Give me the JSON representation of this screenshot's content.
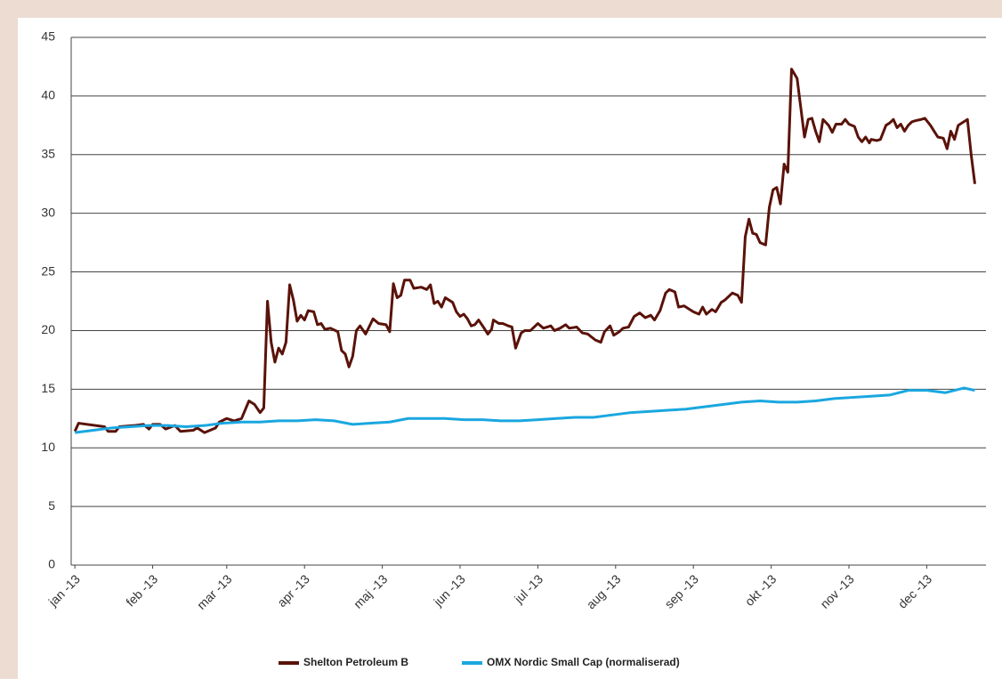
{
  "chart_data": {
    "type": "line",
    "xlim": [
      -1,
      246
    ],
    "xticks": [
      {
        "value": 0,
        "label": "jan -13"
      },
      {
        "value": 21,
        "label": "feb -13"
      },
      {
        "value": 41,
        "label": "mar -13"
      },
      {
        "value": 62,
        "label": "apr -13"
      },
      {
        "value": 83,
        "label": "maj -13"
      },
      {
        "value": 104,
        "label": "jun -13"
      },
      {
        "value": 125,
        "label": "jul -13"
      },
      {
        "value": 146,
        "label": "aug -13"
      },
      {
        "value": 167,
        "label": "sep -13"
      },
      {
        "value": 188,
        "label": "okt -13"
      },
      {
        "value": 209,
        "label": "nov -13"
      },
      {
        "value": 230,
        "label": "dec -13"
      }
    ],
    "ylim": [
      0,
      45
    ],
    "yticks": [
      0,
      5,
      10,
      15,
      20,
      25,
      30,
      35,
      40,
      45
    ],
    "grid": true,
    "legend": "bottom",
    "series": [
      {
        "name": "Shelton Petroleum B",
        "color": "#5a1209",
        "x": [
          0,
          1,
          8,
          9,
          11,
          12,
          16,
          18.5,
          20,
          21,
          23,
          24.5,
          27,
          28.5,
          32,
          33,
          35,
          38,
          39,
          41,
          43,
          45,
          47,
          48.5,
          50,
          51,
          52,
          53,
          54,
          55,
          56,
          57,
          58,
          59,
          60,
          61,
          62,
          63,
          64.5,
          65.5,
          66.5,
          67.5,
          69,
          71,
          72,
          73,
          74,
          75,
          76,
          77,
          78.5,
          80.5,
          82,
          84,
          85,
          86,
          87,
          88,
          89,
          90.5,
          91.5,
          93.5,
          95,
          96,
          97,
          98,
          99,
          100,
          101,
          102,
          103,
          104,
          105,
          106,
          107,
          108,
          109,
          110.5,
          111.5,
          112.5,
          113,
          114.5,
          115.5,
          117,
          118,
          119,
          120.5,
          121.5,
          123,
          125,
          126.5,
          128.5,
          129.5,
          131,
          132.5,
          133.5,
          135.5,
          137,
          138.5,
          140.5,
          142,
          143,
          144.5,
          145.5,
          147,
          148,
          149.5,
          151,
          152.5,
          154,
          155.5,
          156.5,
          158,
          159.5,
          160.5,
          162,
          163,
          164.5,
          166,
          167,
          168.5,
          169.5,
          170.5,
          172,
          173,
          174.5,
          175.5,
          177.5,
          179,
          180,
          181,
          182,
          183,
          184,
          185,
          186.5,
          187.5,
          188.5,
          189.5,
          190.5,
          191.5,
          192.5,
          193.5,
          195,
          196,
          197,
          198,
          199,
          200,
          201,
          202,
          203.5,
          204.5,
          205.5,
          207,
          208,
          209,
          210.5,
          211.5,
          212.5,
          213.5,
          214.5,
          215,
          216.5,
          217.5,
          219,
          220,
          221,
          222,
          223,
          224,
          225,
          226,
          227,
          228.5,
          229.5,
          231,
          232,
          233,
          234.5,
          235.5,
          236.5,
          237.5,
          238.5,
          240,
          241,
          242,
          243
        ],
        "values": [
          11.4,
          12.1,
          11.8,
          11.4,
          11.4,
          11.8,
          11.9,
          12.0,
          11.6,
          12.0,
          12.0,
          11.6,
          11.9,
          11.4,
          11.5,
          11.7,
          11.3,
          11.7,
          12.2,
          12.5,
          12.3,
          12.5,
          14.0,
          13.7,
          13.0,
          13.4,
          22.5,
          19.0,
          17.3,
          18.5,
          18.0,
          19.0,
          23.9,
          22.6,
          20.8,
          21.3,
          20.9,
          21.7,
          21.6,
          20.5,
          20.6,
          20.1,
          20.2,
          19.9,
          18.3,
          18.0,
          16.9,
          17.8,
          20.0,
          20.4,
          19.7,
          21.0,
          20.6,
          20.5,
          19.9,
          24.0,
          22.8,
          23.0,
          24.3,
          24.3,
          23.6,
          23.7,
          23.5,
          23.9,
          22.3,
          22.5,
          22.0,
          22.8,
          22.6,
          22.4,
          21.6,
          21.2,
          21.4,
          21.0,
          20.4,
          20.5,
          20.9,
          20.2,
          19.7,
          20.1,
          20.9,
          20.6,
          20.6,
          20.4,
          20.3,
          18.5,
          19.8,
          20.0,
          20.0,
          20.6,
          20.2,
          20.4,
          20.0,
          20.2,
          20.5,
          20.2,
          20.3,
          19.8,
          19.7,
          19.2,
          19.0,
          19.9,
          20.4,
          19.6,
          19.9,
          20.2,
          20.3,
          21.2,
          21.5,
          21.1,
          21.3,
          20.9,
          21.7,
          23.2,
          23.5,
          23.3,
          22.0,
          22.1,
          21.8,
          21.6,
          21.4,
          22.0,
          21.4,
          21.8,
          21.6,
          22.4,
          22.6,
          23.2,
          23.0,
          22.4,
          28.0,
          29.5,
          28.3,
          28.2,
          27.5,
          27.3,
          30.5,
          32.0,
          32.2,
          30.8,
          34.2,
          33.5,
          42.3,
          41.5,
          39.0,
          36.5,
          38.0,
          38.1,
          37.0,
          36.1,
          38.0,
          37.5,
          36.9,
          37.6,
          37.6,
          38.0,
          37.6,
          37.4,
          36.5,
          36.1,
          36.5,
          36.0,
          36.3,
          36.2,
          36.3,
          37.5,
          37.7,
          38.0,
          37.3,
          37.6,
          37.0,
          37.5,
          37.8,
          37.9,
          38.0,
          38.1,
          37.5,
          37.0,
          36.5,
          36.4,
          35.5,
          37.0,
          36.3,
          37.5,
          37.8,
          38.0,
          35.0,
          32.5
        ]
      },
      {
        "name": "OMX Nordic Small Cap (normaliserad)",
        "color": "#1aa7e0",
        "x": [
          0,
          5,
          10,
          15,
          20,
          25,
          30,
          35,
          40,
          45,
          50,
          55,
          60,
          65,
          70,
          75,
          80,
          85,
          90,
          95,
          100,
          105,
          110,
          115,
          120,
          125,
          130,
          135,
          140,
          145,
          150,
          155,
          160,
          165,
          170,
          175,
          180,
          185,
          190,
          195,
          200,
          205,
          210,
          215,
          220,
          225,
          230,
          235,
          240,
          243
        ],
        "values": [
          11.3,
          11.5,
          11.7,
          11.8,
          11.9,
          11.9,
          11.8,
          11.9,
          12.1,
          12.2,
          12.2,
          12.3,
          12.3,
          12.4,
          12.3,
          12.0,
          12.1,
          12.2,
          12.5,
          12.5,
          12.5,
          12.4,
          12.4,
          12.3,
          12.3,
          12.4,
          12.5,
          12.6,
          12.6,
          12.8,
          13.0,
          13.1,
          13.2,
          13.3,
          13.5,
          13.7,
          13.9,
          14.0,
          13.9,
          13.9,
          14.0,
          14.2,
          14.3,
          14.4,
          14.5,
          14.9,
          14.9,
          14.7,
          15.1,
          14.9
        ]
      }
    ]
  }
}
